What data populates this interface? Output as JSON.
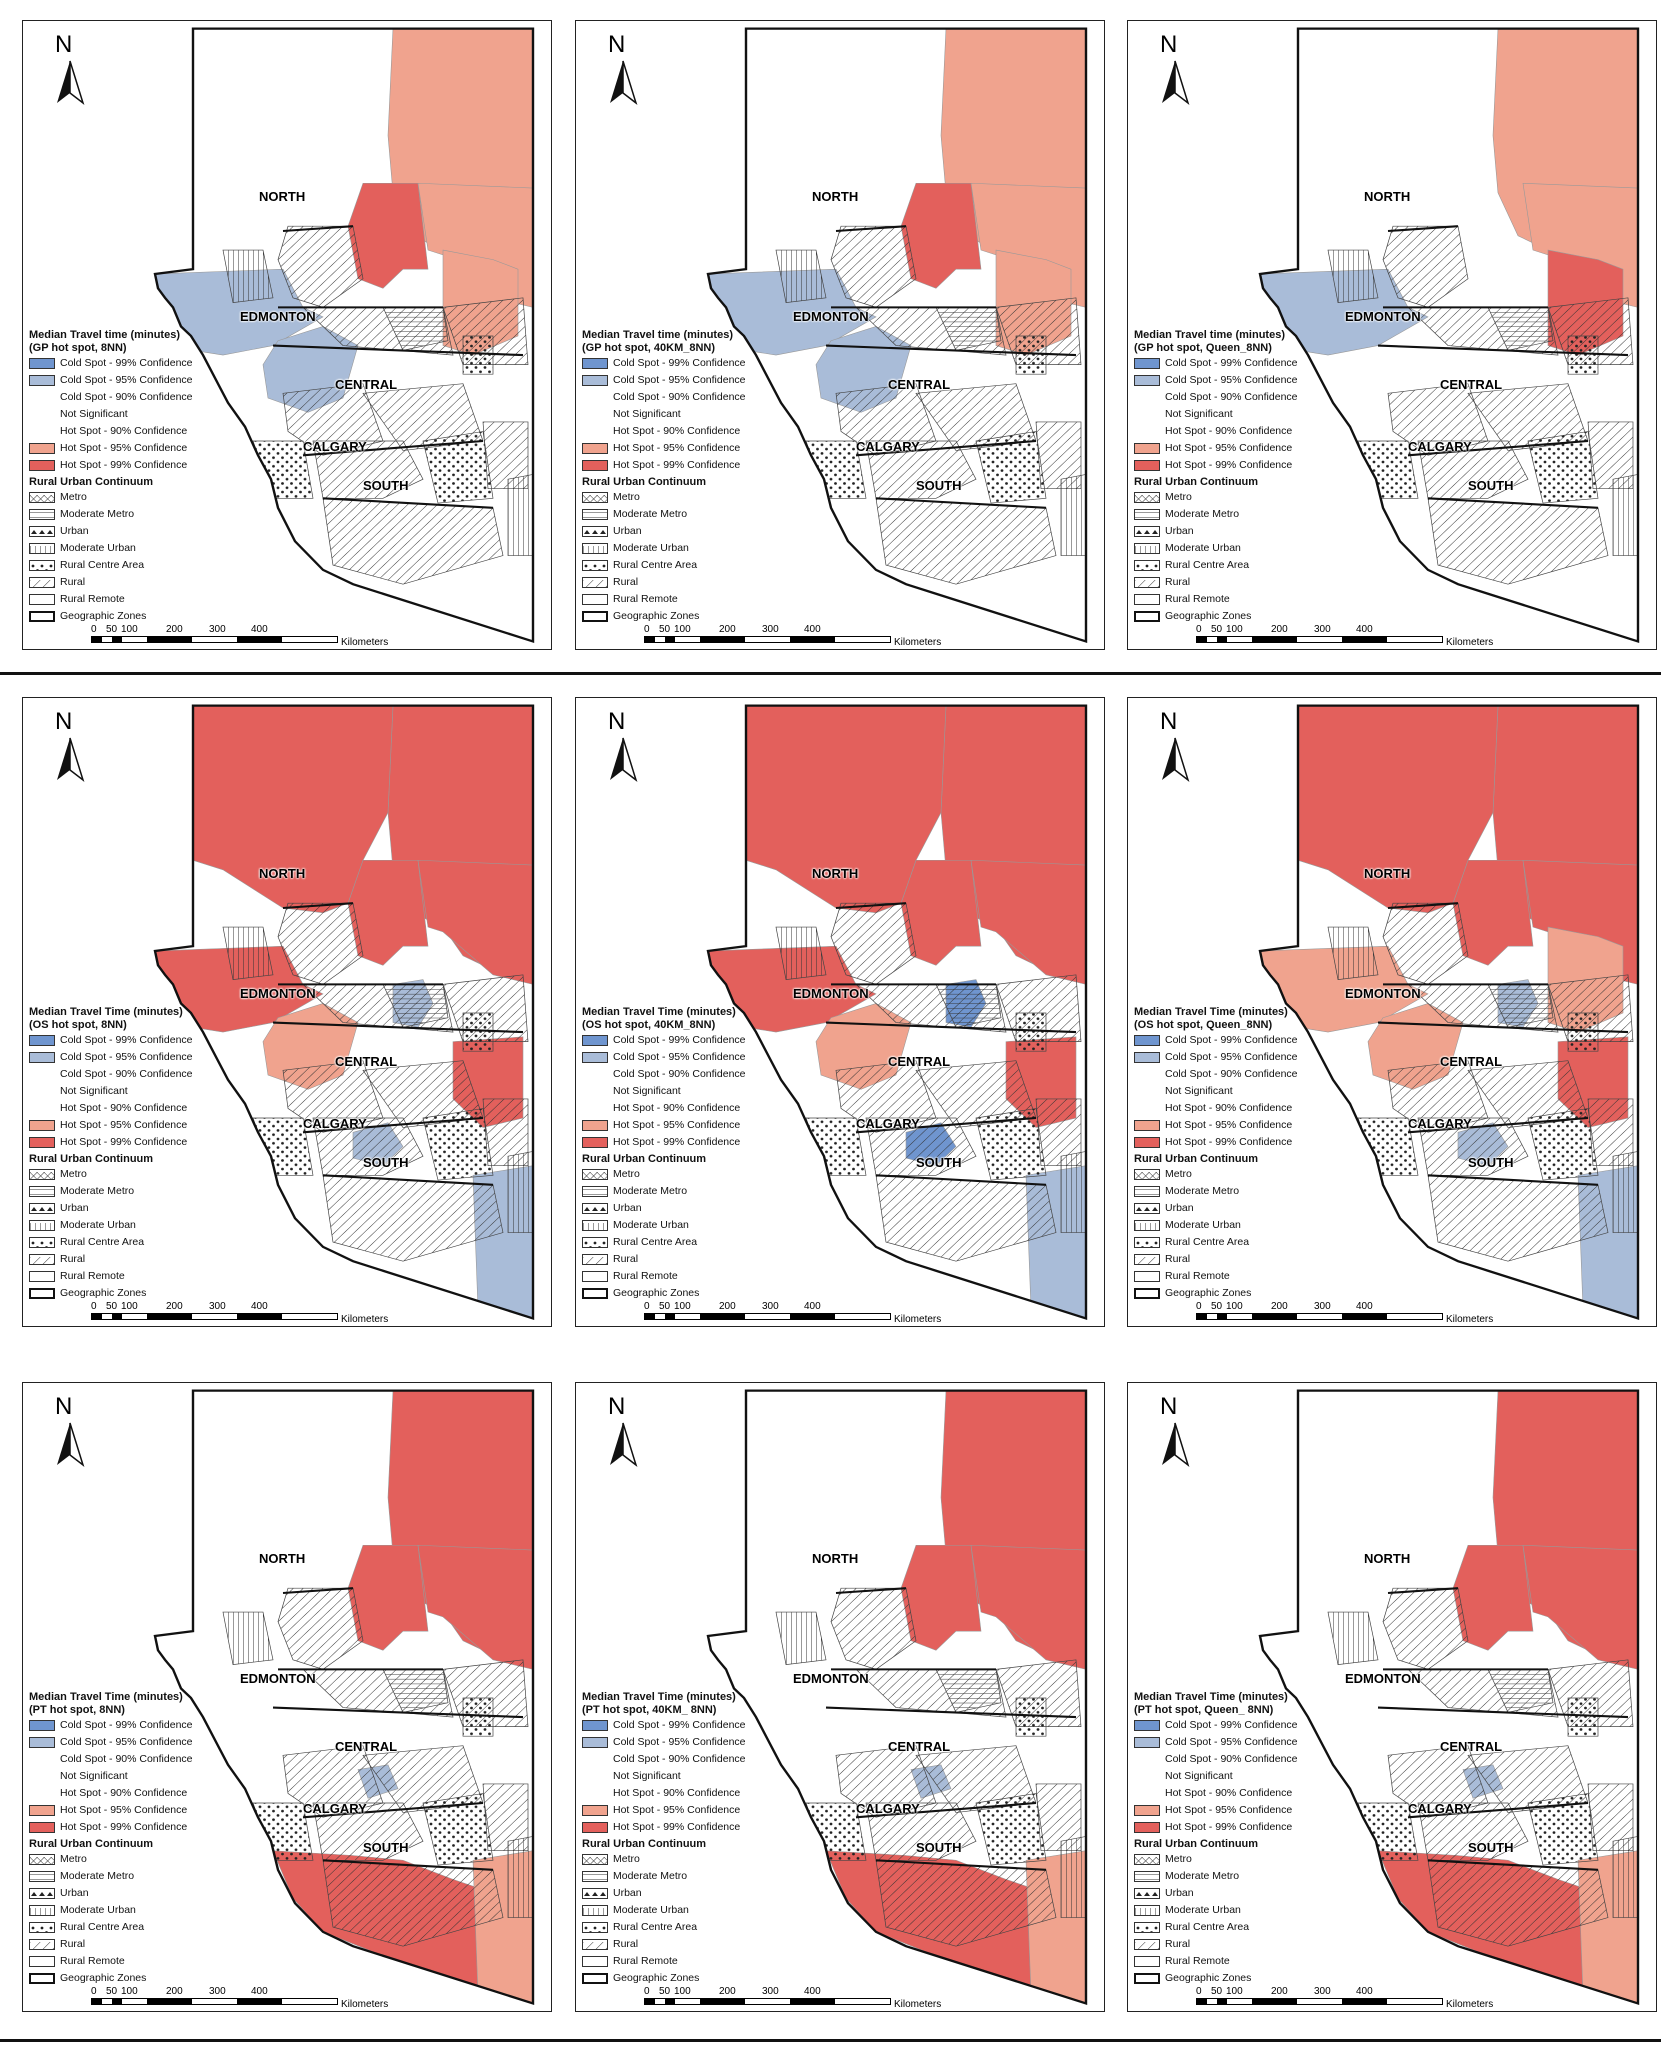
{
  "colors": {
    "cold99": "#6f95cf",
    "cold95": "#a9bcd8",
    "cold90": "#ffffff",
    "not_sig": "#ffffff",
    "hot90": "#ffffff",
    "hot95": "#f0a38e",
    "hot99": "#e3605c"
  },
  "north_label": "N",
  "zones": [
    "NORTH",
    "EDMONTON",
    "CENTRAL",
    "CALGARY",
    "SOUTH"
  ],
  "scale": {
    "ticks": [
      "0",
      "50",
      "100",
      "200",
      "300",
      "400"
    ],
    "unit": "Kilometers"
  },
  "legend_common": {
    "sig_labels": [
      "Cold Spot - 99% Confidence",
      "Cold Spot - 95% Confidence",
      "Cold Spot - 90% Confidence",
      "Not Significant",
      "Hot Spot - 90% Confidence",
      "Hot Spot - 95% Confidence",
      "Hot Spot - 99% Confidence"
    ],
    "ruc_title": "Rural Urban Continuum",
    "ruc_labels": [
      "Metro",
      "Moderate Metro",
      "Urban",
      "Moderate Urban",
      "Rural Centre Area",
      "Rural",
      "Rural Remote",
      "Geographic Zones"
    ]
  },
  "maps": [
    {
      "title1": "Median Travel time (minutes)",
      "title2": "(GP hot spot, 8NN)",
      "regions": {
        "ne_top": "hot95",
        "ne_mid": "hot99",
        "ne_right": "hot95",
        "east_mid": "hot95",
        "west_band": "cold95",
        "central_west": "cold95",
        "edm_core": "none",
        "central_east": "none",
        "calg": "none",
        "south_main": "none",
        "south_east": "none",
        "north_west": "none",
        "se_corner": "none"
      }
    },
    {
      "title1": "Median Travel time (minutes)",
      "title2": "(GP hot spot, 40KM_8NN)",
      "regions": {
        "ne_top": "hot95",
        "ne_mid": "hot99",
        "ne_right": "hot95",
        "east_mid": "hot95",
        "west_band": "cold95",
        "central_west": "cold95",
        "edm_core": "none",
        "central_east": "none",
        "calg": "none",
        "south_main": "none",
        "south_east": "none",
        "north_west": "none",
        "se_corner": "none"
      }
    },
    {
      "title1": "Median Travel time (minutes)",
      "title2": "(GP hot spot, Queen_8NN)",
      "regions": {
        "ne_top": "hot95",
        "ne_mid": "none",
        "ne_right": "hot95",
        "east_mid": "hot99",
        "west_band": "cold95",
        "central_west": "none",
        "edm_core": "none",
        "central_east": "none",
        "calg": "none",
        "south_main": "none",
        "south_east": "none",
        "north_west": "none",
        "se_corner": "none"
      }
    },
    {
      "title1": "Median Travel Time (minutes)",
      "title2": "(OS hot spot, 8NN)",
      "regions": {
        "ne_top": "hot99",
        "ne_mid": "hot99",
        "ne_right": "hot99",
        "east_mid": "none",
        "west_band": "hot99",
        "central_west": "hot95",
        "edm_core": "cold95",
        "central_east": "hot99",
        "calg": "cold95",
        "south_main": "none",
        "south_east": "cold95",
        "north_west": "hot99",
        "se_corner": "none"
      }
    },
    {
      "title1": "Median Travel Time (minutes)",
      "title2": "(OS hot spot, 40KM_8NN)",
      "regions": {
        "ne_top": "hot99",
        "ne_mid": "hot99",
        "ne_right": "hot99",
        "east_mid": "none",
        "west_band": "hot99",
        "central_west": "hot95",
        "edm_core": "cold99",
        "central_east": "hot99",
        "calg": "cold99",
        "south_main": "none",
        "south_east": "cold95",
        "north_west": "hot99",
        "se_corner": "none"
      }
    },
    {
      "title1": "Median Travel Time (minutes)",
      "title2": "(OS hot spot, Queen_8NN)",
      "regions": {
        "ne_top": "hot99",
        "ne_mid": "hot99",
        "ne_right": "hot99",
        "east_mid": "hot95",
        "west_band": "hot95",
        "central_west": "hot95",
        "edm_core": "cold95",
        "central_east": "hot99",
        "calg": "cold95",
        "south_main": "none",
        "south_east": "cold95",
        "north_west": "hot99",
        "se_corner": "none"
      }
    },
    {
      "title1": "Median Travel Time (minutes)",
      "title2": "(PT hot spot, 8NN)",
      "regions": {
        "ne_top": "hot99",
        "ne_mid": "hot99",
        "ne_right": "hot99",
        "east_mid": "none",
        "west_band": "none",
        "central_west": "none",
        "edm_core": "none",
        "central_east": "none",
        "calg": "none",
        "south_main": "hot99",
        "south_east": "hot95",
        "north_west": "none",
        "se_corner": "none",
        "central_spot": "cold95"
      }
    },
    {
      "title1": "Median Travel Time (minutes)",
      "title2": "(PT hot spot, 40KM_ 8NN)",
      "regions": {
        "ne_top": "hot99",
        "ne_mid": "hot99",
        "ne_right": "hot99",
        "east_mid": "none",
        "west_band": "none",
        "central_west": "none",
        "edm_core": "none",
        "central_east": "none",
        "calg": "none",
        "south_main": "hot99",
        "south_east": "hot95",
        "north_west": "none",
        "se_corner": "none",
        "central_spot": "cold95"
      }
    },
    {
      "title1": "Median Travel Time (minutes)",
      "title2": "(PT hot spot, Queen_ 8NN)",
      "regions": {
        "ne_top": "hot99",
        "ne_mid": "hot99",
        "ne_right": "hot99",
        "east_mid": "none",
        "west_band": "none",
        "central_west": "none",
        "edm_core": "none",
        "central_east": "none",
        "calg": "none",
        "south_main": "hot99",
        "south_east": "hot95",
        "north_west": "none",
        "se_corner": "none",
        "central_spot": "cold95"
      }
    }
  ]
}
